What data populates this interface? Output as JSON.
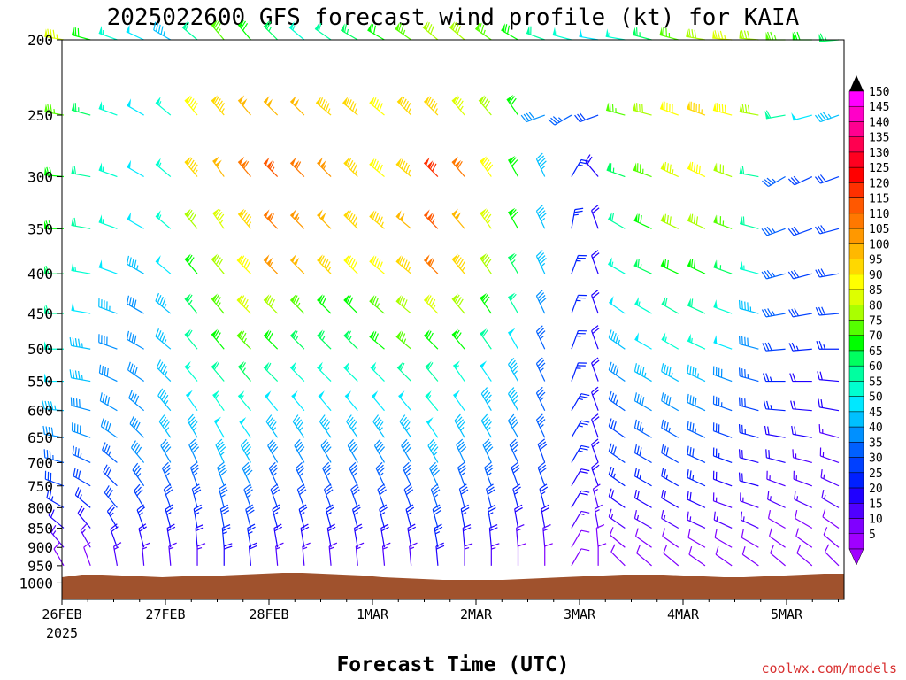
{
  "chart_data": {
    "type": "wind-barb profile",
    "title": "2025022600 GFS forecast wind profile (kt) for KAIA",
    "xlabel": "Forecast Time (UTC)",
    "ylabel": "",
    "y_scale": "log-pressure (inverted)",
    "y_ticks": [
      "200",
      "250",
      "300",
      "350",
      "400",
      "450",
      "500",
      "550",
      "600",
      "650",
      "700",
      "750",
      "800",
      "850",
      "900",
      "950",
      "1000"
    ],
    "ylim": [
      1050,
      200
    ],
    "x_ticks": [
      "26FEB",
      "27FEB",
      "28FEB",
      "1MAR",
      "2MAR",
      "3MAR",
      "4MAR",
      "5MAR"
    ],
    "x_subtick": "2025",
    "colorbar": {
      "unit": "kt",
      "labels": [
        "150",
        "145",
        "140",
        "135",
        "130",
        "125",
        "120",
        "115",
        "110",
        "105",
        "100",
        "95",
        "90",
        "85",
        "80",
        "75",
        "70",
        "65",
        "60",
        "55",
        "50",
        "45",
        "40",
        "35",
        "30",
        "25",
        "20",
        "15",
        "10",
        "5"
      ],
      "colors": [
        "#ff00ff",
        "#ff00c8",
        "#ff0090",
        "#ff0050",
        "#ff0020",
        "#ff0000",
        "#ff3000",
        "#ff5800",
        "#ff7800",
        "#ff9800",
        "#ffb800",
        "#ffd800",
        "#ffff00",
        "#ddff00",
        "#aaff00",
        "#55ff00",
        "#00ff00",
        "#00ff60",
        "#00ffa0",
        "#00ffd0",
        "#00e8ff",
        "#00c0ff",
        "#0090ff",
        "#0060ff",
        "#0040ff",
        "#0020ff",
        "#2000ff",
        "#5000ff",
        "#8000ff",
        "#a000ff"
      ]
    },
    "ground_color": "#a0522d",
    "levels": [
      {
        "p": "200",
        "speeds": [
          85,
          70,
          55,
          50,
          45,
          60,
          75,
          70,
          65,
          55,
          60,
          65,
          70,
          75,
          80,
          80,
          75,
          70,
          60,
          55,
          50,
          55,
          65,
          75,
          80,
          85,
          80,
          75,
          70,
          65
        ],
        "dirs": [
          280,
          285,
          290,
          295,
          300,
          310,
          320,
          320,
          315,
          310,
          305,
          300,
          300,
          305,
          310,
          310,
          305,
          300,
          290,
          285,
          280,
          280,
          285,
          285,
          280,
          275,
          275,
          270,
          270,
          265
        ]
      },
      {
        "p": "250",
        "speeds": [
          75,
          65,
          55,
          50,
          55,
          90,
          95,
          100,
          100,
          100,
          95,
          95,
          90,
          95,
          95,
          85,
          80,
          70,
          40,
          35,
          30,
          75,
          80,
          90,
          95,
          90,
          80,
          60,
          50,
          45
        ],
        "dirs": [
          280,
          285,
          290,
          300,
          310,
          320,
          320,
          320,
          315,
          315,
          310,
          310,
          310,
          315,
          315,
          320,
          320,
          325,
          250,
          240,
          250,
          285,
          285,
          290,
          290,
          285,
          280,
          260,
          255,
          250
        ]
      },
      {
        "p": "300",
        "speeds": [
          70,
          60,
          55,
          50,
          55,
          95,
          100,
          110,
          115,
          110,
          105,
          95,
          90,
          95,
          120,
          110,
          90,
          70,
          45,
          25,
          20,
          65,
          75,
          85,
          90,
          80,
          60,
          35,
          30,
          30
        ],
        "dirs": [
          275,
          280,
          290,
          300,
          310,
          320,
          325,
          320,
          315,
          315,
          315,
          315,
          310,
          310,
          315,
          320,
          325,
          330,
          335,
          30,
          320,
          290,
          290,
          295,
          295,
          290,
          280,
          240,
          245,
          250
        ]
      },
      {
        "p": "350",
        "speeds": [
          70,
          60,
          55,
          50,
          55,
          80,
          85,
          95,
          110,
          105,
          100,
          95,
          95,
          100,
          115,
          100,
          85,
          70,
          45,
          25,
          20,
          60,
          70,
          80,
          80,
          75,
          60,
          35,
          30,
          30
        ],
        "dirs": [
          270,
          280,
          290,
          300,
          310,
          320,
          325,
          320,
          315,
          315,
          315,
          315,
          310,
          310,
          315,
          320,
          325,
          330,
          335,
          10,
          340,
          300,
          295,
          295,
          295,
          290,
          285,
          250,
          250,
          255
        ]
      },
      {
        "p": "400",
        "speeds": [
          65,
          55,
          50,
          45,
          50,
          70,
          80,
          90,
          105,
          100,
          95,
          90,
          90,
          95,
          110,
          95,
          80,
          65,
          45,
          25,
          20,
          55,
          65,
          70,
          70,
          65,
          55,
          35,
          30,
          30
        ],
        "dirs": [
          270,
          280,
          290,
          300,
          310,
          320,
          320,
          315,
          315,
          315,
          315,
          315,
          310,
          310,
          315,
          320,
          325,
          330,
          335,
          20,
          340,
          300,
          295,
          295,
          295,
          290,
          285,
          255,
          255,
          260
        ]
      },
      {
        "p": "450",
        "speeds": [
          60,
          50,
          45,
          40,
          45,
          65,
          75,
          85,
          80,
          75,
          70,
          70,
          75,
          80,
          85,
          80,
          70,
          60,
          40,
          25,
          20,
          50,
          55,
          60,
          60,
          55,
          45,
          35,
          30,
          30
        ],
        "dirs": [
          270,
          280,
          290,
          300,
          310,
          320,
          320,
          315,
          315,
          315,
          315,
          315,
          310,
          310,
          315,
          320,
          325,
          330,
          335,
          20,
          340,
          305,
          300,
          300,
          295,
          290,
          285,
          260,
          260,
          265
        ]
      },
      {
        "p": "500",
        "speeds": [
          55,
          45,
          40,
          40,
          45,
          60,
          70,
          75,
          70,
          65,
          65,
          65,
          70,
          75,
          70,
          70,
          60,
          50,
          35,
          25,
          20,
          45,
          50,
          55,
          55,
          50,
          40,
          30,
          25,
          25
        ],
        "dirs": [
          270,
          280,
          290,
          300,
          310,
          320,
          320,
          315,
          315,
          315,
          315,
          315,
          310,
          310,
          315,
          320,
          325,
          330,
          335,
          20,
          340,
          305,
          300,
          300,
          295,
          290,
          285,
          265,
          265,
          270
        ]
      },
      {
        "p": "550",
        "speeds": [
          50,
          45,
          40,
          40,
          45,
          55,
          60,
          65,
          60,
          55,
          55,
          55,
          55,
          60,
          60,
          55,
          50,
          45,
          35,
          25,
          20,
          40,
          45,
          45,
          45,
          40,
          35,
          25,
          20,
          20
        ],
        "dirs": [
          270,
          280,
          295,
          305,
          315,
          320,
          320,
          320,
          315,
          315,
          315,
          315,
          315,
          315,
          320,
          325,
          325,
          330,
          335,
          20,
          340,
          305,
          300,
          300,
          295,
          290,
          285,
          270,
          270,
          275
        ]
      },
      {
        "p": "600",
        "speeds": [
          45,
          40,
          40,
          40,
          45,
          50,
          55,
          55,
          50,
          50,
          50,
          50,
          50,
          50,
          55,
          50,
          45,
          45,
          35,
          25,
          20,
          35,
          40,
          40,
          40,
          35,
          30,
          25,
          20,
          20
        ],
        "dirs": [
          275,
          285,
          300,
          310,
          320,
          325,
          325,
          320,
          320,
          320,
          320,
          320,
          320,
          320,
          320,
          325,
          330,
          330,
          335,
          30,
          340,
          305,
          300,
          300,
          295,
          290,
          285,
          275,
          275,
          280
        ]
      },
      {
        "p": "650",
        "speeds": [
          40,
          40,
          40,
          40,
          45,
          45,
          50,
          50,
          45,
          45,
          45,
          45,
          45,
          45,
          50,
          45,
          45,
          40,
          35,
          25,
          20,
          30,
          35,
          35,
          35,
          30,
          25,
          20,
          20,
          15
        ],
        "dirs": [
          280,
          290,
          305,
          315,
          325,
          330,
          330,
          325,
          325,
          325,
          325,
          325,
          325,
          325,
          325,
          330,
          330,
          330,
          335,
          30,
          340,
          305,
          300,
          300,
          295,
          290,
          285,
          280,
          280,
          285
        ]
      },
      {
        "p": "700",
        "speeds": [
          35,
          35,
          35,
          40,
          40,
          40,
          45,
          45,
          40,
          40,
          40,
          40,
          40,
          40,
          45,
          40,
          40,
          35,
          30,
          25,
          20,
          30,
          30,
          30,
          30,
          25,
          20,
          20,
          15,
          15
        ],
        "dirs": [
          285,
          295,
          310,
          320,
          330,
          335,
          335,
          330,
          330,
          330,
          330,
          330,
          330,
          330,
          330,
          335,
          335,
          335,
          340,
          30,
          340,
          305,
          300,
          300,
          295,
          290,
          285,
          285,
          285,
          290
        ]
      },
      {
        "p": "750",
        "speeds": [
          30,
          30,
          30,
          35,
          35,
          35,
          40,
          40,
          35,
          35,
          35,
          35,
          35,
          35,
          40,
          35,
          35,
          30,
          30,
          20,
          20,
          25,
          25,
          25,
          25,
          20,
          20,
          15,
          15,
          15
        ],
        "dirs": [
          290,
          300,
          315,
          325,
          335,
          340,
          340,
          335,
          335,
          335,
          335,
          335,
          335,
          335,
          335,
          340,
          340,
          340,
          340,
          30,
          340,
          305,
          300,
          300,
          295,
          290,
          285,
          290,
          290,
          295
        ]
      },
      {
        "p": "800",
        "speeds": [
          25,
          25,
          30,
          30,
          30,
          30,
          35,
          35,
          30,
          30,
          30,
          30,
          30,
          30,
          35,
          30,
          30,
          25,
          25,
          20,
          15,
          20,
          20,
          20,
          20,
          15,
          15,
          15,
          15,
          15
        ],
        "dirs": [
          300,
          310,
          320,
          330,
          340,
          345,
          345,
          340,
          340,
          340,
          340,
          340,
          340,
          340,
          340,
          345,
          345,
          345,
          345,
          30,
          345,
          305,
          300,
          300,
          295,
          290,
          290,
          295,
          295,
          300
        ]
      },
      {
        "p": "850",
        "speeds": [
          20,
          20,
          25,
          25,
          25,
          25,
          30,
          30,
          25,
          25,
          25,
          25,
          25,
          25,
          30,
          25,
          25,
          20,
          20,
          15,
          15,
          15,
          15,
          15,
          15,
          15,
          15,
          10,
          10,
          10
        ],
        "dirs": [
          310,
          320,
          330,
          340,
          345,
          350,
          350,
          345,
          345,
          345,
          345,
          345,
          345,
          345,
          345,
          350,
          350,
          350,
          350,
          30,
          350,
          305,
          300,
          300,
          295,
          295,
          295,
          300,
          300,
          305
        ]
      },
      {
        "p": "900",
        "speeds": [
          15,
          15,
          20,
          20,
          20,
          20,
          25,
          25,
          20,
          20,
          20,
          20,
          20,
          20,
          25,
          20,
          20,
          15,
          15,
          10,
          10,
          10,
          10,
          10,
          10,
          10,
          10,
          10,
          10,
          10
        ],
        "dirs": [
          320,
          330,
          340,
          345,
          350,
          355,
          355,
          350,
          350,
          350,
          350,
          350,
          350,
          350,
          350,
          355,
          355,
          355,
          355,
          30,
          355,
          310,
          305,
          305,
          300,
          300,
          300,
          305,
          305,
          310
        ]
      },
      {
        "p": "950",
        "speeds": [
          10,
          10,
          15,
          15,
          15,
          15,
          20,
          20,
          15,
          15,
          15,
          15,
          15,
          15,
          20,
          15,
          15,
          10,
          10,
          10,
          10,
          10,
          10,
          10,
          10,
          10,
          10,
          10,
          10,
          10
        ],
        "dirs": [
          330,
          340,
          350,
          355,
          355,
          360,
          360,
          355,
          355,
          355,
          355,
          355,
          355,
          355,
          355,
          360,
          360,
          360,
          360,
          30,
          360,
          315,
          310,
          310,
          305,
          305,
          305,
          310,
          310,
          315
        ]
      }
    ]
  },
  "credit": "coolwx.com/models"
}
